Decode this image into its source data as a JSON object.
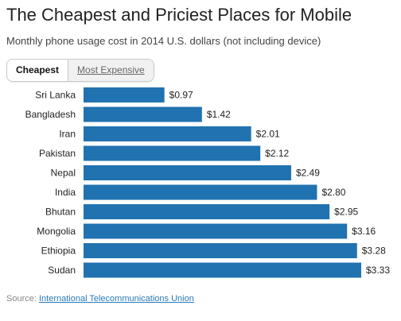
{
  "header": {
    "title": "The Cheapest and Priciest Places for Mobile",
    "subtitle": "Monthly phone usage cost in 2014 U.S. dollars (not including device)"
  },
  "tabs": [
    {
      "label": "Cheapest",
      "active": true
    },
    {
      "label": "Most Expensive",
      "active": false
    }
  ],
  "chart_data": {
    "type": "bar",
    "orientation": "horizontal",
    "categories": [
      "Sri Lanka",
      "Bangladesh",
      "Iran",
      "Pakistan",
      "Nepal",
      "India",
      "Bhutan",
      "Mongolia",
      "Ethiopia",
      "Sudan"
    ],
    "values": [
      0.97,
      1.42,
      2.01,
      2.12,
      2.49,
      2.8,
      2.95,
      3.16,
      3.28,
      3.33
    ],
    "value_labels": [
      "$0.97",
      "$1.42",
      "$2.01",
      "$2.12",
      "$2.49",
      "$2.80",
      "$2.95",
      "$3.16",
      "$3.28",
      "$3.33"
    ],
    "title": "",
    "xlabel": "",
    "ylabel": "",
    "xlim": [
      0,
      3.33
    ],
    "grid": false,
    "bar_color": "#2172b0"
  },
  "source": {
    "prefix": "Source: ",
    "link_text": "International Telecommunications Union"
  }
}
